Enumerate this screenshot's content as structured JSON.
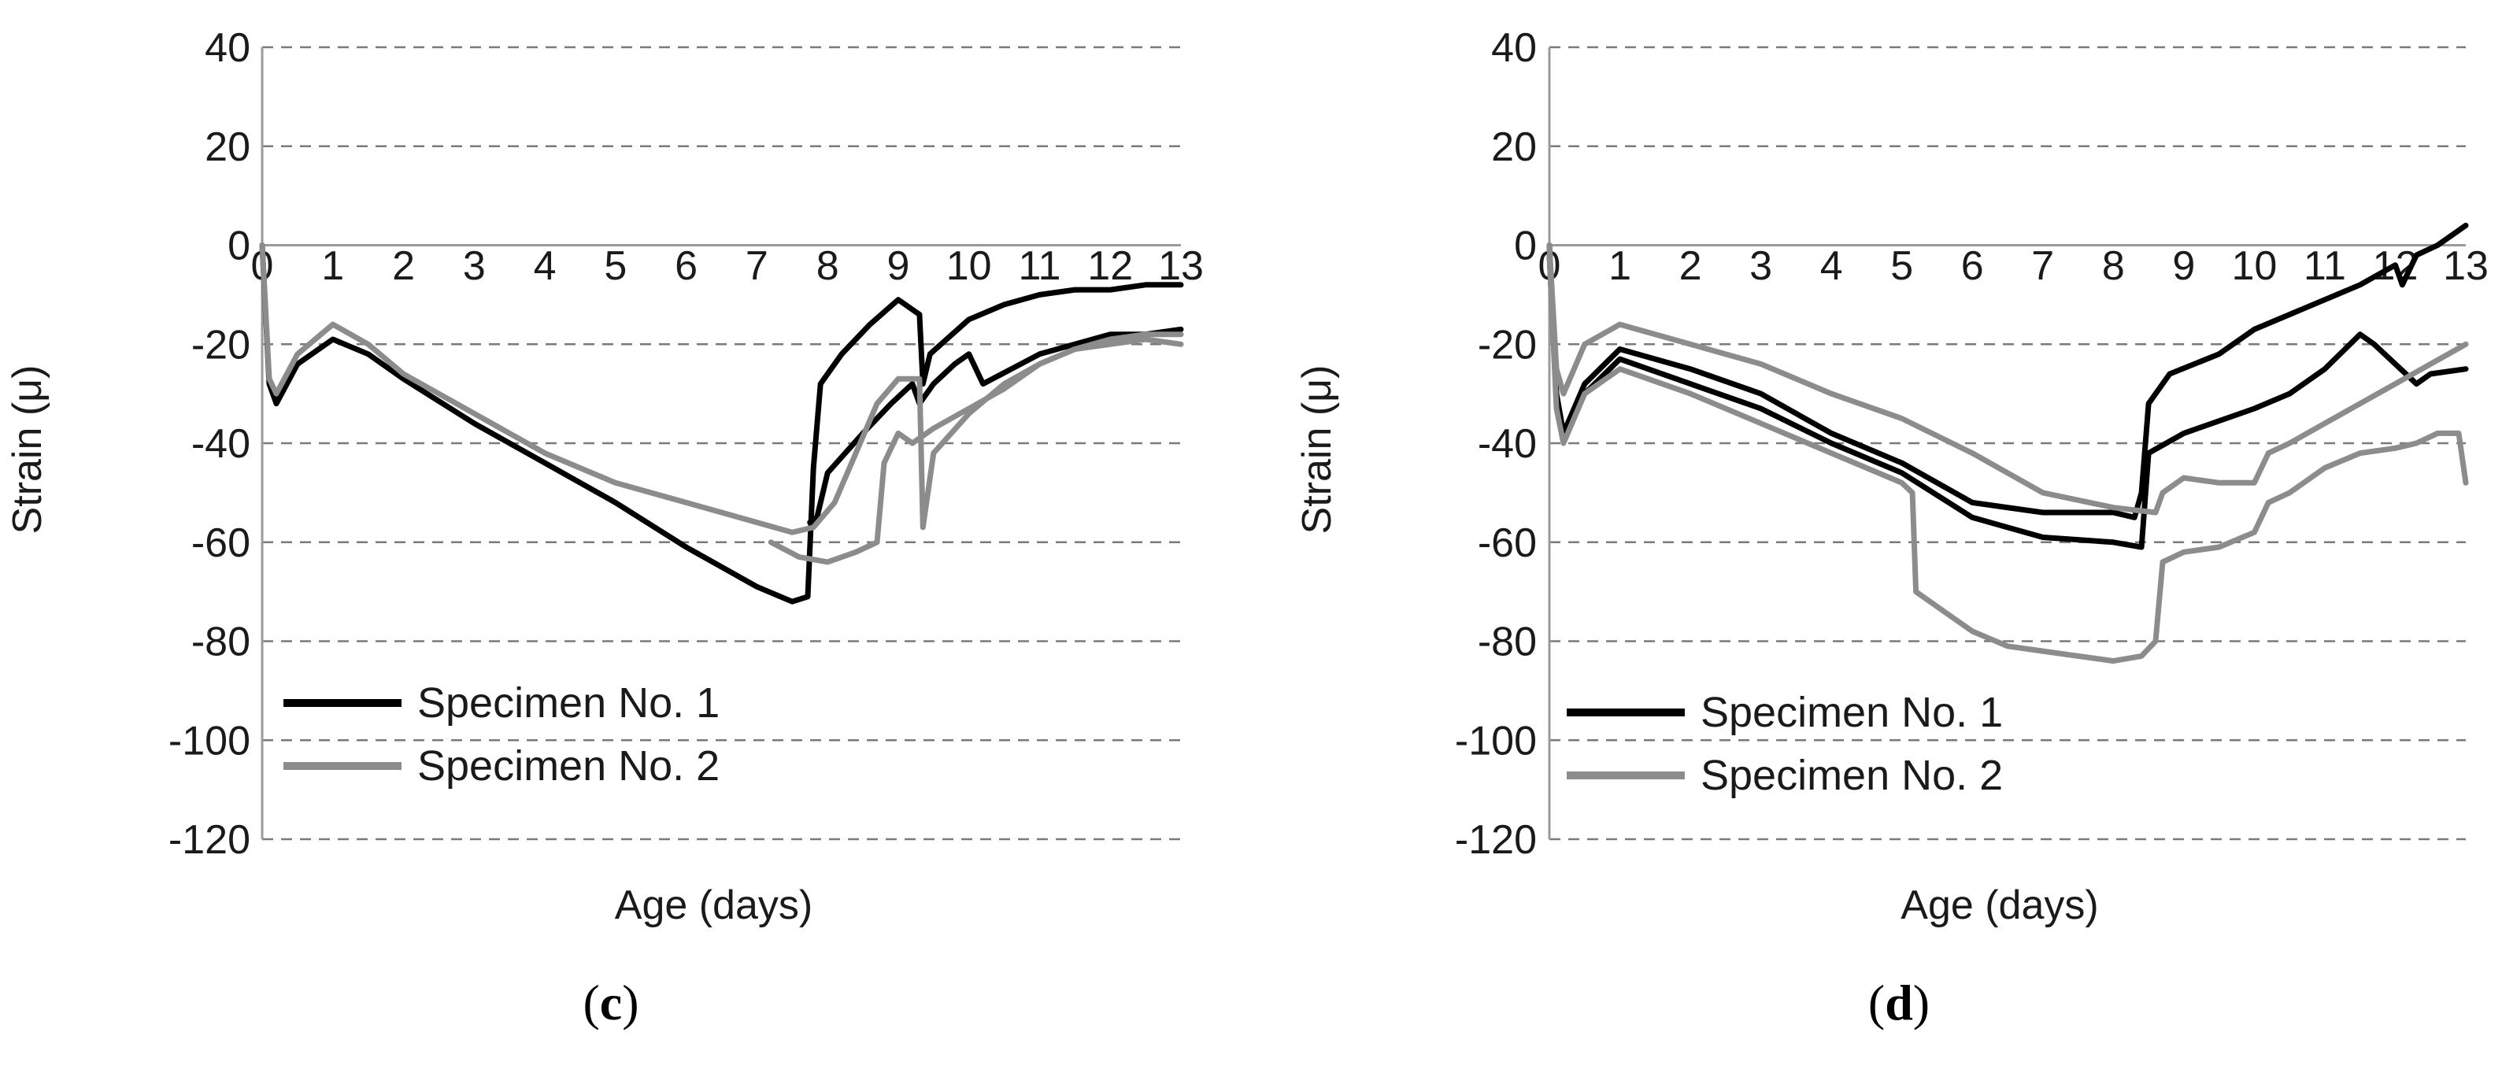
{
  "chart_data": [
    {
      "type": "line",
      "panel_label": "c",
      "xlabel": "Age (days)",
      "ylabel": "Strain (μ)",
      "xlim": [
        0,
        13
      ],
      "ylim": [
        -120,
        40
      ],
      "x_ticks": [
        "0",
        "1",
        "2",
        "3",
        "4",
        "5",
        "6",
        "7",
        "8",
        "9",
        "10",
        "11",
        "12",
        "13"
      ],
      "y_ticks": [
        "40",
        "20",
        "0",
        "-20",
        "-40",
        "-60",
        "-80",
        "-100",
        "-120"
      ],
      "grid": "horizontal dashed",
      "legend": {
        "placement": "bottom-left",
        "entries": [
          "Specimen No. 1",
          "Specimen No. 2"
        ]
      },
      "series": [
        {
          "name": "Specimen No. 1",
          "color": "#000000",
          "points": [
            [
              0,
              0
            ],
            [
              0.1,
              -28
            ],
            [
              0.2,
              -32
            ],
            [
              0.5,
              -24
            ],
            [
              1,
              -19
            ],
            [
              1.5,
              -22
            ],
            [
              2,
              -27
            ],
            [
              3,
              -36
            ],
            [
              4,
              -44
            ],
            [
              5,
              -52
            ],
            [
              6,
              -61
            ],
            [
              7,
              -69
            ],
            [
              7.5,
              -72
            ],
            [
              7.72,
              -71
            ],
            [
              7.8,
              -45
            ],
            [
              7.9,
              -28
            ],
            [
              8.2,
              -22
            ],
            [
              8.6,
              -16
            ],
            [
              9,
              -11
            ],
            [
              9.3,
              -14
            ],
            [
              9.35,
              -28
            ],
            [
              9.45,
              -22
            ],
            [
              10,
              -15
            ],
            [
              10.5,
              -12
            ],
            [
              11,
              -10
            ],
            [
              11.5,
              -9
            ],
            [
              12,
              -9
            ],
            [
              12.5,
              -8
            ],
            [
              13,
              -8
            ]
          ]
        },
        {
          "name": "Specimen No. 1",
          "color": "#000000",
          "points": [
            [
              7.75,
              -56
            ],
            [
              7.85,
              -55
            ],
            [
              8.0,
              -46
            ],
            [
              8.5,
              -38
            ],
            [
              8.9,
              -32
            ],
            [
              9.2,
              -28
            ],
            [
              9.3,
              -32
            ],
            [
              9.5,
              -28
            ],
            [
              9.8,
              -24
            ],
            [
              10,
              -22
            ],
            [
              10.2,
              -28
            ],
            [
              10.6,
              -25
            ],
            [
              11,
              -22
            ],
            [
              11.5,
              -20
            ],
            [
              12,
              -18
            ],
            [
              12.5,
              -18
            ],
            [
              13,
              -17
            ]
          ]
        },
        {
          "name": "Specimen No. 2",
          "color": "#8c8c8c",
          "points": [
            [
              0,
              0
            ],
            [
              0.1,
              -27
            ],
            [
              0.2,
              -30
            ],
            [
              0.5,
              -22
            ],
            [
              1,
              -16
            ],
            [
              1.5,
              -20
            ],
            [
              2,
              -26
            ],
            [
              3,
              -34
            ],
            [
              4,
              -42
            ],
            [
              5,
              -48
            ],
            [
              6,
              -52
            ],
            [
              7,
              -56
            ],
            [
              7.5,
              -58
            ],
            [
              7.8,
              -57
            ],
            [
              8.1,
              -52
            ],
            [
              8.4,
              -42
            ],
            [
              8.7,
              -32
            ],
            [
              9,
              -27
            ],
            [
              9.3,
              -27
            ],
            [
              9.35,
              -57
            ],
            [
              9.5,
              -42
            ],
            [
              10,
              -34
            ],
            [
              10.5,
              -28
            ],
            [
              11,
              -24
            ],
            [
              11.5,
              -21
            ],
            [
              12,
              -19
            ],
            [
              12.5,
              -18
            ],
            [
              13,
              -18
            ]
          ]
        },
        {
          "name": "Specimen No. 2",
          "color": "#8c8c8c",
          "points": [
            [
              7.2,
              -60
            ],
            [
              7.6,
              -63
            ],
            [
              8.0,
              -64
            ],
            [
              8.4,
              -62
            ],
            [
              8.7,
              -60
            ],
            [
              8.8,
              -44
            ],
            [
              9.0,
              -38
            ],
            [
              9.2,
              -40
            ],
            [
              9.5,
              -37
            ],
            [
              10,
              -33
            ],
            [
              10.5,
              -29
            ],
            [
              11,
              -24
            ],
            [
              11.5,
              -21
            ],
            [
              12,
              -20
            ],
            [
              12.5,
              -19
            ],
            [
              13,
              -20
            ]
          ]
        }
      ]
    },
    {
      "type": "line",
      "panel_label": "d",
      "xlabel": "Age (days)",
      "ylabel": "Strain (μ)",
      "xlim": [
        0,
        13
      ],
      "ylim": [
        -120,
        40
      ],
      "x_ticks": [
        "0",
        "1",
        "2",
        "3",
        "4",
        "5",
        "6",
        "7",
        "8",
        "9",
        "10",
        "11",
        "12",
        "13"
      ],
      "y_ticks": [
        "40",
        "20",
        "0",
        "-20",
        "-40",
        "-60",
        "-80",
        "-100",
        "-120"
      ],
      "grid": "horizontal dashed",
      "legend": {
        "placement": "bottom-left",
        "entries": [
          "Specimen No. 1",
          "Specimen No. 2"
        ]
      },
      "series": [
        {
          "name": "Specimen No. 1",
          "color": "#000000",
          "points": [
            [
              0,
              0
            ],
            [
              0.1,
              -30
            ],
            [
              0.2,
              -38
            ],
            [
              0.5,
              -28
            ],
            [
              1,
              -21
            ],
            [
              2,
              -25
            ],
            [
              3,
              -30
            ],
            [
              4,
              -38
            ],
            [
              5,
              -44
            ],
            [
              6,
              -52
            ],
            [
              7,
              -54
            ],
            [
              8,
              -54
            ],
            [
              8.3,
              -55
            ],
            [
              8.4,
              -50
            ],
            [
              8.5,
              -32
            ],
            [
              8.8,
              -26
            ],
            [
              9.5,
              -22
            ],
            [
              10,
              -17
            ],
            [
              10.5,
              -14
            ],
            [
              11,
              -11
            ],
            [
              11.5,
              -8
            ],
            [
              12,
              -4
            ],
            [
              12.1,
              -8
            ],
            [
              12.3,
              -2
            ],
            [
              12.6,
              0
            ],
            [
              13,
              4
            ]
          ]
        },
        {
          "name": "Specimen No. 1",
          "color": "#000000",
          "points": [
            [
              0,
              -2
            ],
            [
              0.1,
              -32
            ],
            [
              0.2,
              -39
            ],
            [
              0.5,
              -30
            ],
            [
              1,
              -23
            ],
            [
              2,
              -28
            ],
            [
              3,
              -33
            ],
            [
              4,
              -40
            ],
            [
              5,
              -46
            ],
            [
              6,
              -55
            ],
            [
              7,
              -59
            ],
            [
              8,
              -60
            ],
            [
              8.4,
              -61
            ],
            [
              8.5,
              -42
            ],
            [
              9,
              -38
            ],
            [
              10,
              -33
            ],
            [
              10.5,
              -30
            ],
            [
              11,
              -25
            ],
            [
              11.5,
              -18
            ],
            [
              11.7,
              -20
            ],
            [
              12,
              -24
            ],
            [
              12.3,
              -28
            ],
            [
              12.5,
              -26
            ],
            [
              13,
              -25
            ]
          ]
        },
        {
          "name": "Specimen No. 2",
          "color": "#8c8c8c",
          "points": [
            [
              0,
              0
            ],
            [
              0.1,
              -25
            ],
            [
              0.2,
              -30
            ],
            [
              0.5,
              -20
            ],
            [
              1,
              -16
            ],
            [
              2,
              -20
            ],
            [
              3,
              -24
            ],
            [
              4,
              -30
            ],
            [
              5,
              -35
            ],
            [
              6,
              -42
            ],
            [
              7,
              -50
            ],
            [
              8,
              -53
            ],
            [
              8.6,
              -54
            ],
            [
              8.7,
              -50
            ],
            [
              9,
              -47
            ],
            [
              9.5,
              -48
            ],
            [
              10,
              -48
            ],
            [
              10.2,
              -42
            ],
            [
              10.5,
              -40
            ],
            [
              11,
              -36
            ],
            [
              11.5,
              -32
            ],
            [
              12,
              -28
            ],
            [
              12.5,
              -24
            ],
            [
              13,
              -20
            ]
          ]
        },
        {
          "name": "Specimen No. 2",
          "color": "#8c8c8c",
          "points": [
            [
              0,
              -2
            ],
            [
              0.1,
              -33
            ],
            [
              0.2,
              -40
            ],
            [
              0.5,
              -30
            ],
            [
              1,
              -25
            ],
            [
              2,
              -30
            ],
            [
              3,
              -36
            ],
            [
              4,
              -42
            ],
            [
              5,
              -48
            ],
            [
              5.15,
              -50
            ],
            [
              5.2,
              -70
            ],
            [
              5.6,
              -74
            ],
            [
              6,
              -78
            ],
            [
              6.5,
              -81
            ],
            [
              7,
              -82
            ],
            [
              7.5,
              -83
            ],
            [
              8,
              -84
            ],
            [
              8.4,
              -83
            ],
            [
              8.6,
              -80
            ],
            [
              8.7,
              -64
            ],
            [
              9,
              -62
            ],
            [
              9.5,
              -61
            ],
            [
              10,
              -58
            ],
            [
              10.2,
              -52
            ],
            [
              10.5,
              -50
            ],
            [
              11,
              -45
            ],
            [
              11.5,
              -42
            ],
            [
              12,
              -41
            ],
            [
              12.3,
              -40
            ],
            [
              12.6,
              -38
            ],
            [
              12.9,
              -38
            ],
            [
              13,
              -48
            ]
          ]
        }
      ]
    }
  ]
}
